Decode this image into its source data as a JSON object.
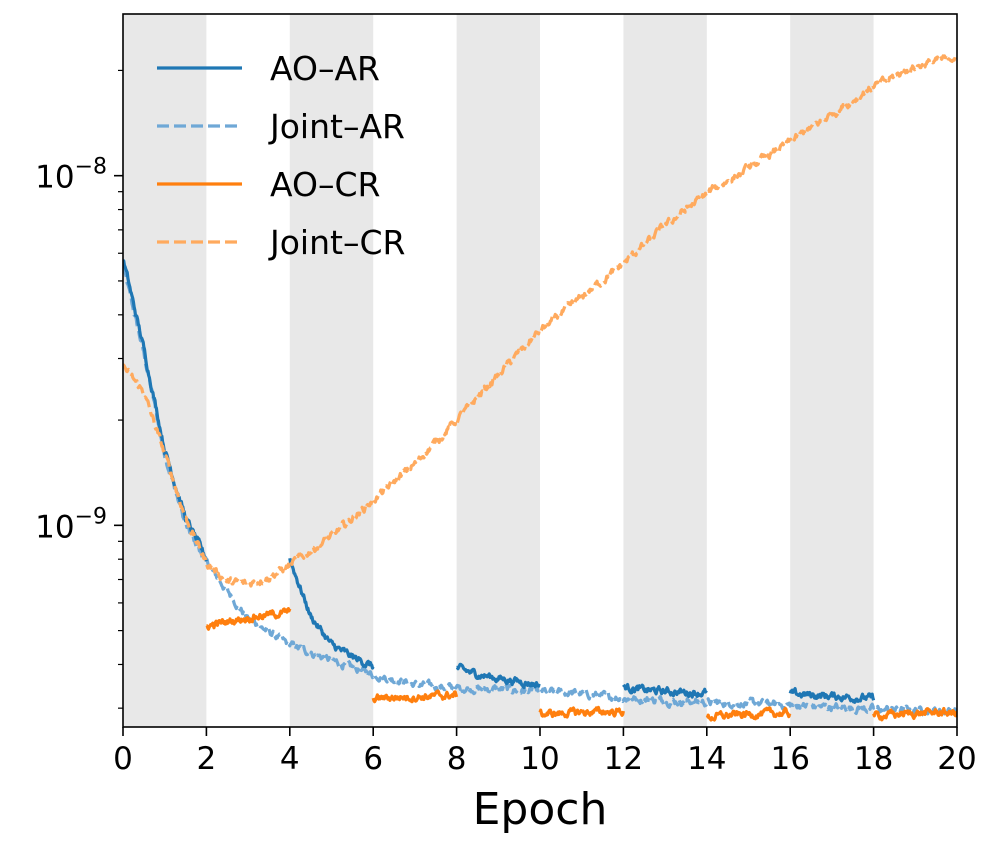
{
  "chart_data": {
    "type": "line",
    "xlabel": "Epoch",
    "ylabel": "",
    "yscale": "log",
    "xlim": [
      0,
      20
    ],
    "ylim": [
      2.65e-10,
      2.9e-08
    ],
    "x_ticks": [
      0,
      2,
      4,
      6,
      8,
      10,
      12,
      14,
      16,
      18,
      20
    ],
    "x_tick_labels": [
      "0",
      "2",
      "4",
      "6",
      "8",
      "10",
      "12",
      "14",
      "16",
      "18",
      "20"
    ],
    "y_ticks": [
      {
        "value": 1e-09,
        "base": "10",
        "exponent": "−9"
      },
      {
        "value": 1e-08,
        "base": "10",
        "exponent": "−8"
      }
    ],
    "shaded_bands": [
      [
        0,
        2
      ],
      [
        4,
        6
      ],
      [
        8,
        10
      ],
      [
        12,
        14
      ],
      [
        16,
        18
      ]
    ],
    "legend_position": "upper-left",
    "series": [
      {
        "name": "AO–AR",
        "color": "#1f77b4",
        "dash": "solid",
        "segments": [
          [
            [
              0,
              5.8e-09
            ],
            [
              0.5,
              3.2e-09
            ],
            [
              1,
              1.65e-09
            ],
            [
              1.5,
              1.05e-09
            ],
            [
              2,
              8e-10
            ]
          ],
          [
            [
              4,
              8e-10
            ],
            [
              4.5,
              5.5e-10
            ],
            [
              5,
              4.55e-10
            ],
            [
              5.5,
              4.2e-10
            ],
            [
              6,
              3.95e-10
            ]
          ],
          [
            [
              8,
              3.9e-10
            ],
            [
              8.5,
              3.75e-10
            ],
            [
              9,
              3.65e-10
            ],
            [
              9.5,
              3.58e-10
            ],
            [
              10,
              3.5e-10
            ]
          ],
          [
            [
              12,
              3.45e-10
            ],
            [
              12.5,
              3.38e-10
            ],
            [
              13,
              3.35e-10
            ],
            [
              13.5,
              3.33e-10
            ],
            [
              14,
              3.32e-10
            ]
          ],
          [
            [
              16,
              3.3e-10
            ],
            [
              16.5,
              3.27e-10
            ],
            [
              17,
              3.25e-10
            ],
            [
              17.5,
              3.22e-10
            ],
            [
              18,
              3.2e-10
            ]
          ]
        ]
      },
      {
        "name": "Joint–AR",
        "color": "#6fa8d6",
        "dash": "dashed",
        "segments": [
          [
            [
              0,
              5.5e-09
            ],
            [
              0.5,
              3.1e-09
            ],
            [
              1,
              1.6e-09
            ],
            [
              1.5,
              1e-09
            ],
            [
              2,
              7.8e-10
            ],
            [
              3,
              5.4e-10
            ],
            [
              4,
              4.55e-10
            ],
            [
              5,
              4.1e-10
            ],
            [
              6,
              3.75e-10
            ],
            [
              7,
              3.5e-10
            ],
            [
              8,
              3.42e-10
            ],
            [
              9,
              3.4e-10
            ],
            [
              10,
              3.35e-10
            ],
            [
              11,
              3.3e-10
            ],
            [
              12,
              3.2e-10
            ],
            [
              13,
              3.15e-10
            ],
            [
              14,
              3.12e-10
            ],
            [
              15,
              3.1e-10
            ],
            [
              16,
              3.06e-10
            ],
            [
              17,
              3.02e-10
            ],
            [
              18,
              2.98e-10
            ],
            [
              19,
              2.96e-10
            ],
            [
              20,
              2.95e-10
            ]
          ]
        ]
      },
      {
        "name": "AO–CR",
        "color": "#ff7f0e",
        "dash": "solid",
        "segments": [
          [
            [
              2,
              5.15e-10
            ],
            [
              2.5,
              5.3e-10
            ],
            [
              3,
              5.45e-10
            ],
            [
              3.5,
              5.55e-10
            ],
            [
              4,
              5.65e-10
            ]
          ],
          [
            [
              6,
              3.2e-10
            ],
            [
              6.5,
              3.22e-10
            ],
            [
              7,
              3.23e-10
            ],
            [
              7.5,
              3.25e-10
            ],
            [
              8,
              3.27e-10
            ]
          ],
          [
            [
              10,
              2.88e-10
            ],
            [
              10.5,
              2.9e-10
            ],
            [
              11,
              2.92e-10
            ],
            [
              11.5,
              2.93e-10
            ],
            [
              12,
              2.93e-10
            ]
          ],
          [
            [
              14,
              2.82e-10
            ],
            [
              14.5,
              2.86e-10
            ],
            [
              15,
              2.88e-10
            ],
            [
              15.5,
              2.9e-10
            ],
            [
              16,
              2.9e-10
            ]
          ],
          [
            [
              18,
              2.85e-10
            ],
            [
              18.5,
              2.88e-10
            ],
            [
              19,
              2.9e-10
            ],
            [
              19.5,
              2.92e-10
            ],
            [
              20,
              2.9e-10
            ]
          ]
        ]
      },
      {
        "name": "Joint–CR",
        "color": "#ffaa5e",
        "dash": "dashed",
        "segments": [
          [
            [
              0,
              2.85e-09
            ],
            [
              0.5,
              2.4e-09
            ],
            [
              1,
              1.6e-09
            ],
            [
              1.5,
              1.05e-09
            ],
            [
              2,
              7.8e-10
            ],
            [
              2.5,
              6.9e-10
            ],
            [
              3,
              6.8e-10
            ],
            [
              3.5,
              7.1e-10
            ],
            [
              4,
              7.7e-10
            ],
            [
              5,
              9.3e-10
            ],
            [
              6,
              1.18e-09
            ],
            [
              7,
              1.5e-09
            ],
            [
              8,
              2e-09
            ],
            [
              9,
              2.7e-09
            ],
            [
              10,
              3.6e-09
            ],
            [
              11,
              4.5e-09
            ],
            [
              12,
              5.6e-09
            ],
            [
              13,
              7.2e-09
            ],
            [
              14,
              8.9e-09
            ],
            [
              15,
              1.05e-08
            ],
            [
              16,
              1.25e-08
            ],
            [
              17,
              1.5e-08
            ],
            [
              18,
              1.8e-08
            ],
            [
              19,
              2.05e-08
            ],
            [
              20,
              2.2e-08
            ]
          ]
        ]
      }
    ]
  }
}
